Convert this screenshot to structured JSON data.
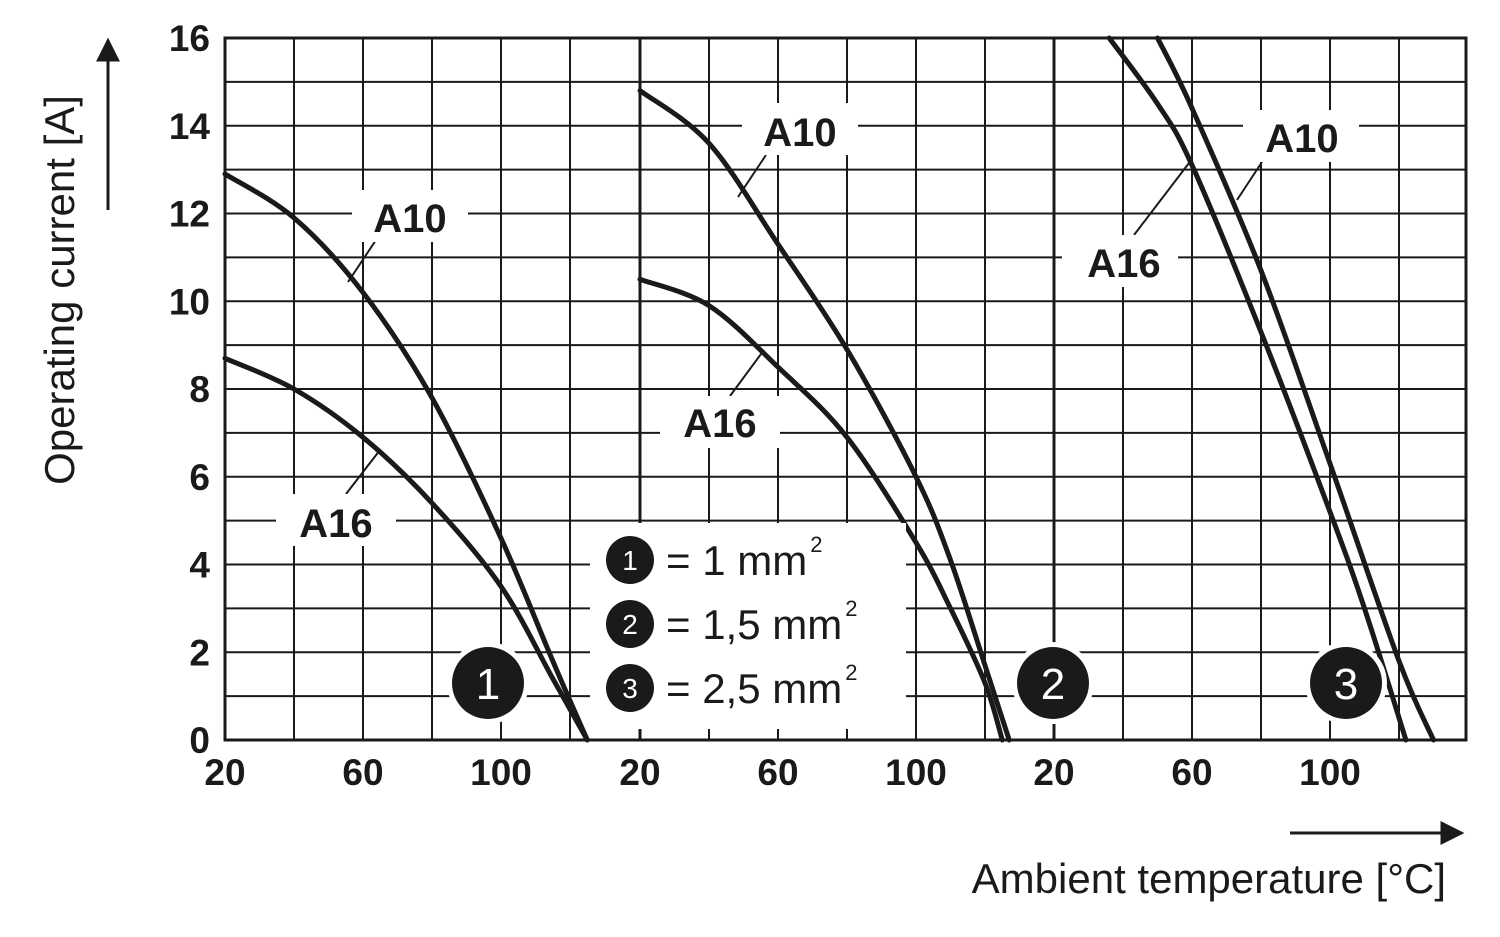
{
  "chart_data": {
    "type": "line",
    "xlabel": "Ambient temperature [°C]",
    "ylabel": "Operating current [A]",
    "ylim": [
      0,
      16
    ],
    "yticks": [
      0,
      2,
      4,
      6,
      8,
      10,
      12,
      14,
      16
    ],
    "grid": true,
    "panels": [
      {
        "marker": "1",
        "xlim": [
          20,
          140
        ],
        "xtick_labels": [
          "20",
          "60",
          "100"
        ],
        "xticks": [
          20,
          60,
          100
        ],
        "series": [
          {
            "name": "A10",
            "x": [
              20,
              40,
              60,
              80,
              100,
              115,
              125
            ],
            "y": [
              12.9,
              11.9,
              10.2,
              7.8,
              4.6,
              1.8,
              0
            ]
          },
          {
            "name": "A16",
            "x": [
              20,
              40,
              60,
              80,
              100,
              115,
              125
            ],
            "y": [
              8.7,
              8.0,
              6.9,
              5.4,
              3.5,
              1.4,
              0
            ]
          }
        ]
      },
      {
        "marker": "2",
        "xlim": [
          20,
          140
        ],
        "xtick_labels": [
          "20",
          "60",
          "100"
        ],
        "xticks": [
          20,
          60,
          100
        ],
        "series": [
          {
            "name": "A10",
            "x": [
              20,
              40,
              60,
              80,
              100,
              110,
              120,
              127
            ],
            "y": [
              14.8,
              13.6,
              11.3,
              8.9,
              6.0,
              4.1,
              1.7,
              0
            ]
          },
          {
            "name": "A16",
            "x": [
              20,
              40,
              60,
              80,
              100,
              110,
              120,
              125
            ],
            "y": [
              10.5,
              9.9,
              8.5,
              6.9,
              4.5,
              3.0,
              1.3,
              0
            ]
          }
        ]
      },
      {
        "marker": "3",
        "xlim": [
          20,
          140
        ],
        "xtick_labels": [
          "20",
          "60",
          "100"
        ],
        "xticks": [
          20,
          60,
          100
        ],
        "series": [
          {
            "name": "A10",
            "x": [
              50,
              60,
              80,
              100,
              120,
              130
            ],
            "y": [
              16,
              14.4,
              10.7,
              6.3,
              1.8,
              0
            ]
          },
          {
            "name": "A16",
            "x": [
              36,
              50,
              60,
              80,
              100,
              110,
              122
            ],
            "y": [
              16,
              14.5,
              13.1,
              9.3,
              5.2,
              3.0,
              0
            ]
          }
        ]
      }
    ],
    "legend": [
      {
        "marker": "1",
        "text": "= 1 mm",
        "sup": "2"
      },
      {
        "marker": "2",
        "text": "= 1,5 mm",
        "sup": "2"
      },
      {
        "marker": "3",
        "text": "= 2,5 mm",
        "sup": "2"
      }
    ]
  }
}
